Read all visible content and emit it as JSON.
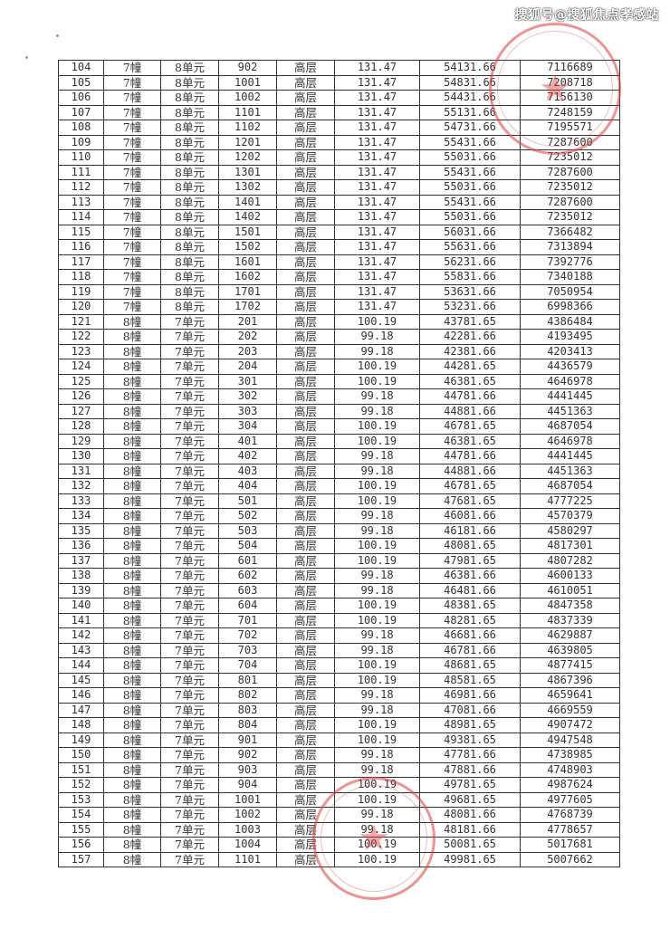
{
  "watermark": "搜狐号@搜狐焦点孝感站",
  "stamp_colors": {
    "seal": "#dc3c3c"
  },
  "table": {
    "rows": [
      [
        "104",
        "7幢",
        "8单元",
        "902",
        "高层",
        "131.47",
        "54131.66",
        "7116689"
      ],
      [
        "105",
        "7幢",
        "8单元",
        "1001",
        "高层",
        "131.47",
        "54831.66",
        "7208718"
      ],
      [
        "106",
        "7幢",
        "8单元",
        "1002",
        "高层",
        "131.47",
        "54431.66",
        "7156130"
      ],
      [
        "107",
        "7幢",
        "8单元",
        "1101",
        "高层",
        "131.47",
        "55131.66",
        "7248159"
      ],
      [
        "108",
        "7幢",
        "8单元",
        "1102",
        "高层",
        "131.47",
        "54731.66",
        "7195571"
      ],
      [
        "109",
        "7幢",
        "8单元",
        "1201",
        "高层",
        "131.47",
        "55431.66",
        "7287600"
      ],
      [
        "110",
        "7幢",
        "8单元",
        "1202",
        "高层",
        "131.47",
        "55031.66",
        "7235012"
      ],
      [
        "111",
        "7幢",
        "8单元",
        "1301",
        "高层",
        "131.47",
        "55431.66",
        "7287600"
      ],
      [
        "112",
        "7幢",
        "8单元",
        "1302",
        "高层",
        "131.47",
        "55031.66",
        "7235012"
      ],
      [
        "113",
        "7幢",
        "8单元",
        "1401",
        "高层",
        "131.47",
        "55431.66",
        "7287600"
      ],
      [
        "114",
        "7幢",
        "8单元",
        "1402",
        "高层",
        "131.47",
        "55031.66",
        "7235012"
      ],
      [
        "115",
        "7幢",
        "8单元",
        "1501",
        "高层",
        "131.47",
        "56031.66",
        "7366482"
      ],
      [
        "116",
        "7幢",
        "8单元",
        "1502",
        "高层",
        "131.47",
        "55631.66",
        "7313894"
      ],
      [
        "117",
        "7幢",
        "8单元",
        "1601",
        "高层",
        "131.47",
        "56231.66",
        "7392776"
      ],
      [
        "118",
        "7幢",
        "8单元",
        "1602",
        "高层",
        "131.47",
        "55831.66",
        "7340188"
      ],
      [
        "119",
        "7幢",
        "8单元",
        "1701",
        "高层",
        "131.47",
        "53631.66",
        "7050954"
      ],
      [
        "120",
        "7幢",
        "8单元",
        "1702",
        "高层",
        "131.47",
        "53231.66",
        "6998366"
      ],
      [
        "121",
        "8幢",
        "7单元",
        "201",
        "高层",
        "100.19",
        "43781.65",
        "4386484"
      ],
      [
        "122",
        "8幢",
        "7单元",
        "202",
        "高层",
        "99.18",
        "42281.66",
        "4193495"
      ],
      [
        "123",
        "8幢",
        "7单元",
        "203",
        "高层",
        "99.18",
        "42381.66",
        "4203413"
      ],
      [
        "124",
        "8幢",
        "7单元",
        "204",
        "高层",
        "100.19",
        "44281.65",
        "4436579"
      ],
      [
        "125",
        "8幢",
        "7单元",
        "301",
        "高层",
        "100.19",
        "46381.65",
        "4646978"
      ],
      [
        "126",
        "8幢",
        "7单元",
        "302",
        "高层",
        "99.18",
        "44781.66",
        "4441445"
      ],
      [
        "127",
        "8幢",
        "7单元",
        "303",
        "高层",
        "99.18",
        "44881.66",
        "4451363"
      ],
      [
        "128",
        "8幢",
        "7单元",
        "304",
        "高层",
        "100.19",
        "46781.65",
        "4687054"
      ],
      [
        "129",
        "8幢",
        "7单元",
        "401",
        "高层",
        "100.19",
        "46381.65",
        "4646978"
      ],
      [
        "130",
        "8幢",
        "7单元",
        "402",
        "高层",
        "99.18",
        "44781.66",
        "4441445"
      ],
      [
        "131",
        "8幢",
        "7单元",
        "403",
        "高层",
        "99.18",
        "44881.66",
        "4451363"
      ],
      [
        "132",
        "8幢",
        "7单元",
        "404",
        "高层",
        "100.19",
        "46781.65",
        "4687054"
      ],
      [
        "133",
        "8幢",
        "7单元",
        "501",
        "高层",
        "100.19",
        "47681.65",
        "4777225"
      ],
      [
        "134",
        "8幢",
        "7单元",
        "502",
        "高层",
        "99.18",
        "46081.66",
        "4570379"
      ],
      [
        "135",
        "8幢",
        "7单元",
        "503",
        "高层",
        "99.18",
        "46181.66",
        "4580297"
      ],
      [
        "136",
        "8幢",
        "7单元",
        "504",
        "高层",
        "100.19",
        "48081.65",
        "4817301"
      ],
      [
        "137",
        "8幢",
        "7单元",
        "601",
        "高层",
        "100.19",
        "47981.65",
        "4807282"
      ],
      [
        "138",
        "8幢",
        "7单元",
        "602",
        "高层",
        "99.18",
        "46381.66",
        "4600133"
      ],
      [
        "139",
        "8幢",
        "7单元",
        "603",
        "高层",
        "99.18",
        "46481.66",
        "4610051"
      ],
      [
        "140",
        "8幢",
        "7单元",
        "604",
        "高层",
        "100.19",
        "48381.65",
        "4847358"
      ],
      [
        "141",
        "8幢",
        "7单元",
        "701",
        "高层",
        "100.19",
        "48281.65",
        "4837339"
      ],
      [
        "142",
        "8幢",
        "7单元",
        "702",
        "高层",
        "99.18",
        "46681.66",
        "4629887"
      ],
      [
        "143",
        "8幢",
        "7单元",
        "703",
        "高层",
        "99.18",
        "46781.66",
        "4639805"
      ],
      [
        "144",
        "8幢",
        "7单元",
        "704",
        "高层",
        "100.19",
        "48681.65",
        "4877415"
      ],
      [
        "145",
        "8幢",
        "7单元",
        "801",
        "高层",
        "100.19",
        "48581.65",
        "4867396"
      ],
      [
        "146",
        "8幢",
        "7单元",
        "802",
        "高层",
        "99.18",
        "46981.66",
        "4659641"
      ],
      [
        "147",
        "8幢",
        "7单元",
        "803",
        "高层",
        "99.18",
        "47081.66",
        "4669559"
      ],
      [
        "148",
        "8幢",
        "7单元",
        "804",
        "高层",
        "100.19",
        "48981.65",
        "4907472"
      ],
      [
        "149",
        "8幢",
        "7单元",
        "901",
        "高层",
        "100.19",
        "49381.65",
        "4947548"
      ],
      [
        "150",
        "8幢",
        "7单元",
        "902",
        "高层",
        "99.18",
        "47781.66",
        "4738985"
      ],
      [
        "151",
        "8幢",
        "7单元",
        "903",
        "高层",
        "99.18",
        "47881.66",
        "4748903"
      ],
      [
        "152",
        "8幢",
        "7单元",
        "904",
        "高层",
        "100.19",
        "49781.65",
        "4987624"
      ],
      [
        "153",
        "8幢",
        "7单元",
        "1001",
        "高层",
        "100.19",
        "49681.65",
        "4977605"
      ],
      [
        "154",
        "8幢",
        "7单元",
        "1002",
        "高层",
        "99.18",
        "48081.66",
        "4768739"
      ],
      [
        "155",
        "8幢",
        "7单元",
        "1003",
        "高层",
        "99.18",
        "48181.66",
        "4778657"
      ],
      [
        "156",
        "8幢",
        "7单元",
        "1004",
        "高层",
        "100.19",
        "50081.65",
        "5017681"
      ],
      [
        "157",
        "8幢",
        "7单元",
        "1101",
        "高层",
        "100.19",
        "49981.65",
        "5007662"
      ]
    ]
  }
}
